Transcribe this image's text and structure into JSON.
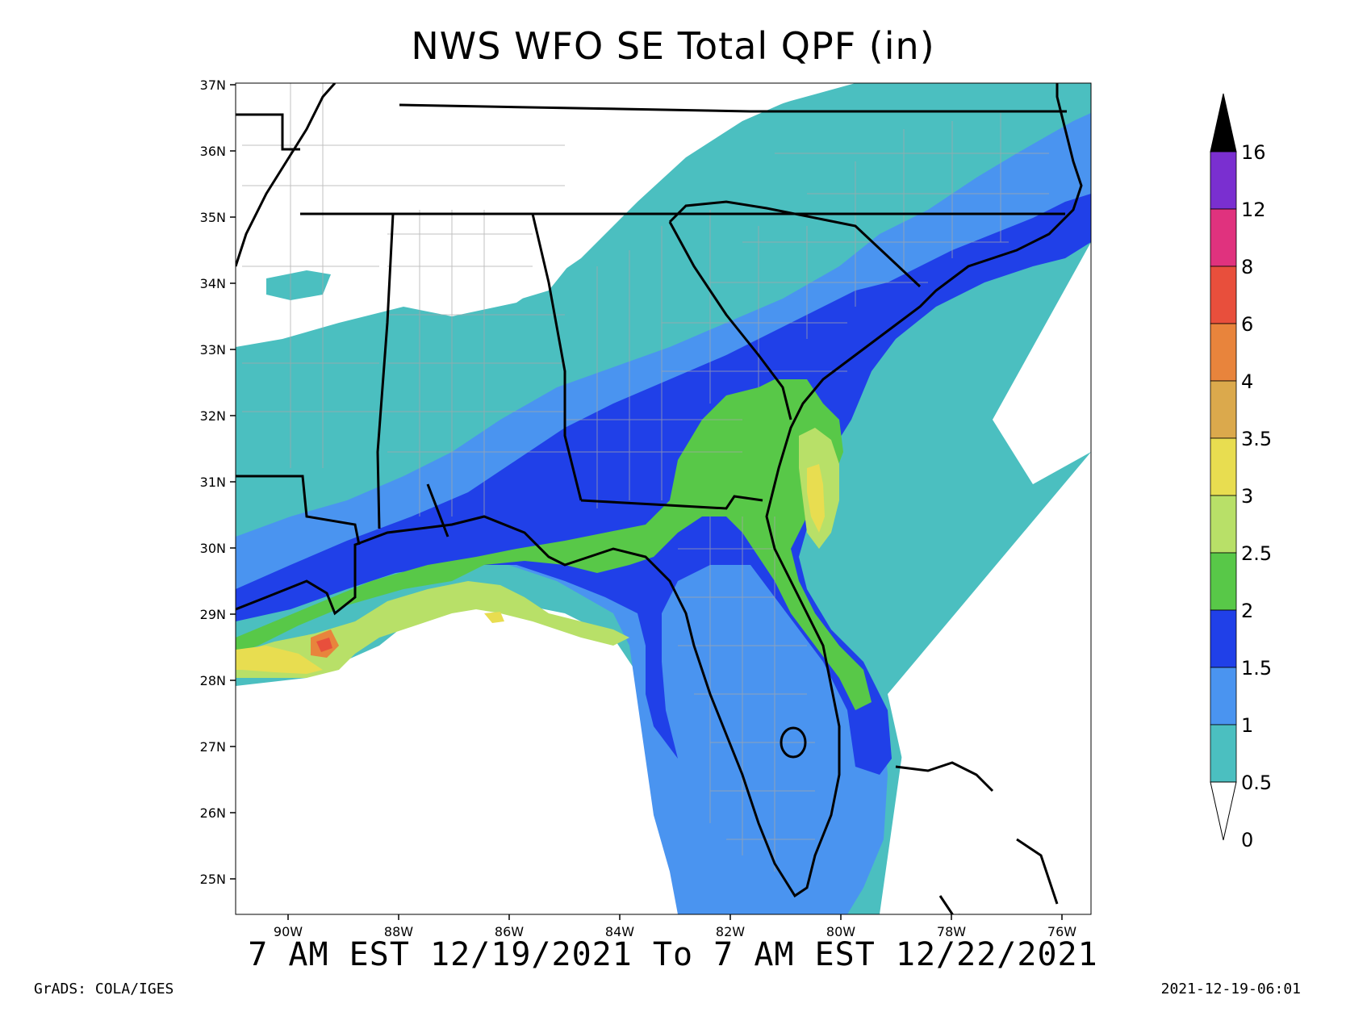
{
  "title": "NWS WFO SE Total QPF (in)",
  "subtitle": "7 AM EST 12/19/2021 To 7 AM EST 12/22/2021",
  "credit": "GrADS: COLA/IGES",
  "timestamp": "2021-12-19-06:01",
  "lat_labels": [
    "37N",
    "36N",
    "35N",
    "34N",
    "33N",
    "32N",
    "31N",
    "30N",
    "29N",
    "28N",
    "27N",
    "26N",
    "25N"
  ],
  "lon_labels": [
    "90W",
    "88W",
    "86W",
    "84W",
    "82W",
    "80W",
    "78W",
    "76W"
  ],
  "colorbar": {
    "unit": "in",
    "levels": [
      "16",
      "12",
      "8",
      "6",
      "4",
      "3.5",
      "3",
      "2.5",
      "2",
      "1.5",
      "1",
      "0.5",
      "0"
    ],
    "colors": [
      "#7a2fd0",
      "#e0327e",
      "#e84f3c",
      "#e8843c",
      "#dba94c",
      "#e8dd50",
      "#b8e068",
      "#58c848",
      "#2040e8",
      "#4a94f0",
      "#4bbfc0"
    ],
    "top_triangle_color": "#000000",
    "bottom_triangle_color": "#ffffff"
  }
}
